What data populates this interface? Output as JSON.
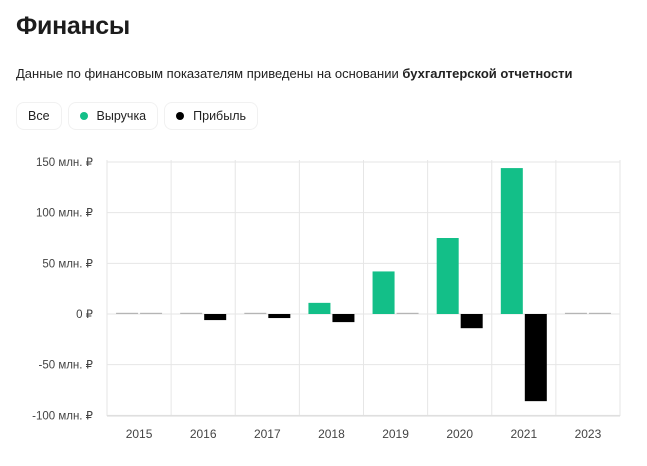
{
  "page": {
    "title": "Финансы",
    "subtitle_prefix": "Данные по финансовым показателям приведены на основании ",
    "subtitle_bold": "бухгалтерской отчетности"
  },
  "filters": [
    {
      "label": "Все",
      "color": null
    },
    {
      "label": "Выручка",
      "color": "#13bf88"
    },
    {
      "label": "Прибыль",
      "color": "#000000"
    }
  ],
  "chart_data": {
    "type": "bar",
    "categories": [
      "2015",
      "2016",
      "2017",
      "2018",
      "2019",
      "2020",
      "2021",
      "2023"
    ],
    "series": [
      {
        "name": "Выручка",
        "color": "#13bf88",
        "values": [
          0,
          0.3,
          0.3,
          11,
          42,
          75,
          144,
          0
        ]
      },
      {
        "name": "Прибыль",
        "color": "#000000",
        "values": [
          0,
          -6,
          -4,
          -8,
          0.3,
          -14,
          -86,
          0
        ]
      }
    ],
    "ylim": [
      -100,
      150
    ],
    "yticks": [
      150,
      100,
      50,
      0,
      -50,
      -100
    ],
    "ytick_labels": [
      "150 млн. ₽",
      "100 млн. ₽",
      "50 млн. ₽",
      "0 ₽",
      "-50 млн. ₽",
      "-100 млн. ₽"
    ],
    "grid": true,
    "legend": "top-left"
  }
}
